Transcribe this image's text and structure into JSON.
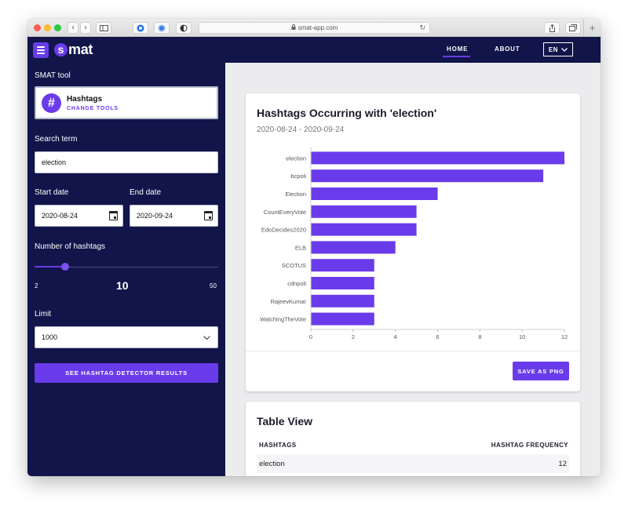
{
  "browser": {
    "url": "smat-app.com",
    "back_glyph": "‹",
    "forward_glyph": "›"
  },
  "header": {
    "logo_letter": "s",
    "logo_text": "mat",
    "nav": {
      "home": "HOME",
      "about": "ABOUT"
    },
    "language": "EN"
  },
  "sidebar": {
    "tool_section_label": "SMAT tool",
    "tool": {
      "icon": "#",
      "name": "Hashtags",
      "change_label": "CHANGE TOOLS"
    },
    "search": {
      "label": "Search term",
      "value": "election"
    },
    "start_date": {
      "label": "Start date",
      "value": "2020-08-24"
    },
    "end_date": {
      "label": "End date",
      "value": "2020-09-24"
    },
    "hashtag_count": {
      "label": "Number of hashtags",
      "min": "2",
      "value": "10",
      "max": "50",
      "fraction": 0.167
    },
    "limit": {
      "label": "Limit",
      "value": "1000"
    },
    "submit_label": "SEE HASHTAG DETECTOR RESULTS"
  },
  "chart_card": {
    "title": "Hashtags Occurring with 'election'",
    "date_range": "2020-08-24 - 2020-09-24",
    "save_label": "SAVE AS PNG"
  },
  "chart_data": {
    "type": "bar",
    "orientation": "horizontal",
    "categories": [
      "election",
      "bcpoli",
      "Election",
      "CountEveryVote",
      "EdoDecides2020",
      "ELB",
      "SCOTUS",
      "cdnpoli",
      "RajeevKumar",
      "WatchingTheVote"
    ],
    "values": [
      12,
      11,
      6,
      5,
      5,
      4,
      3,
      3,
      3,
      3
    ],
    "xlim": [
      0,
      12
    ],
    "xticks": [
      0,
      2,
      4,
      6,
      8,
      10,
      12
    ],
    "color": "#6a3bea",
    "grid": false
  },
  "table": {
    "title": "Table View",
    "columns": [
      "HASHTAGS",
      "HASHTAG FREQUENCY"
    ],
    "rows": [
      {
        "hashtag": "election",
        "frequency": "12"
      }
    ]
  },
  "colors": {
    "navy": "#11154a",
    "accent": "#6a3bea",
    "main_bg": "#ececef"
  }
}
